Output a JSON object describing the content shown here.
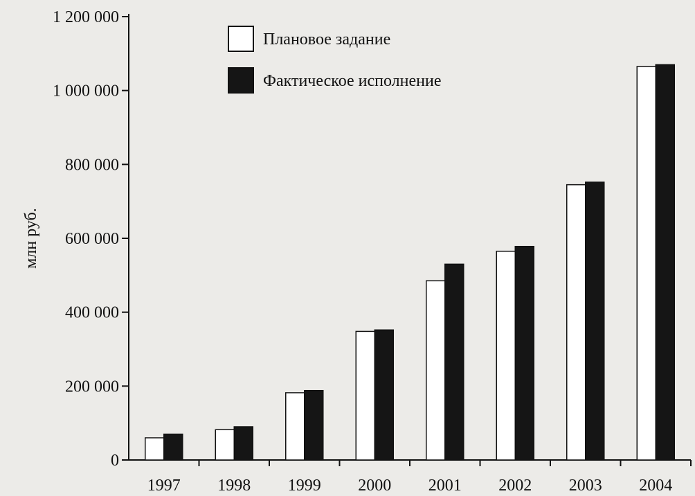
{
  "chart_data": {
    "type": "bar",
    "title": "",
    "xlabel": "",
    "ylabel": "млн руб.",
    "ylim": [
      0,
      1200000
    ],
    "yticks": [
      0,
      200000,
      400000,
      600000,
      800000,
      1000000,
      1200000
    ],
    "ytick_labels": [
      "0",
      "200 000",
      "400 000",
      "600 000",
      "800 000",
      "1 000 000",
      "1 200 000"
    ],
    "categories": [
      "1997",
      "1998",
      "1999",
      "2000",
      "2001",
      "2002",
      "2003",
      "2004"
    ],
    "grid": false,
    "legend_position": "top-left",
    "series": [
      {
        "name": "Плановое задание",
        "color": "#ffffff",
        "values": [
          60000,
          82000,
          182000,
          348000,
          485000,
          565000,
          745000,
          1065000
        ]
      },
      {
        "name": "Фактическое исполнение",
        "color": "#151515",
        "values": [
          70000,
          90000,
          188000,
          352000,
          530000,
          578000,
          752000,
          1070000
        ]
      }
    ]
  }
}
